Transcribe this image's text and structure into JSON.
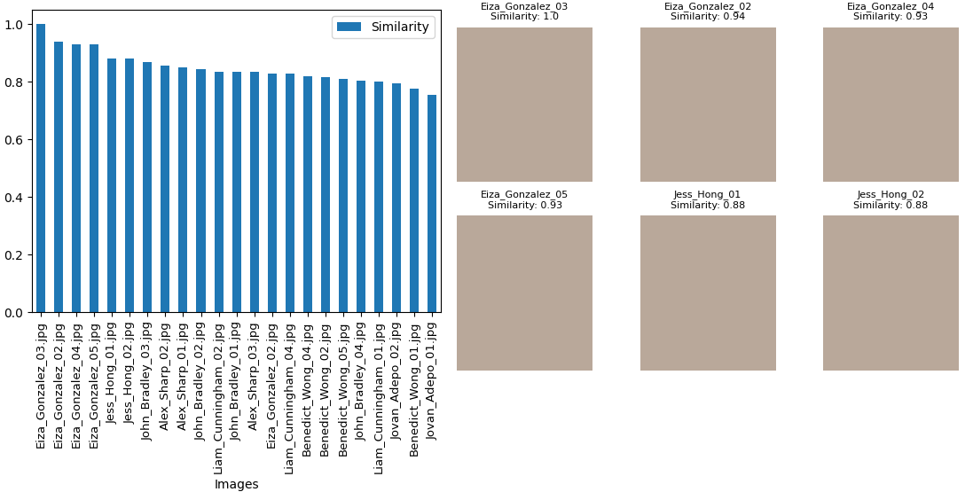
{
  "chart_data": {
    "type": "bar",
    "x_label": "Images",
    "categories": [
      "Eiza_Gonzalez_03.jpg",
      "Eiza_Gonzalez_02.jpg",
      "Eiza_Gonzalez_04.jpg",
      "Eiza_Gonzalez_05.jpg",
      "Jess_Hong_01.jpg",
      "Jess_Hong_02.jpg",
      "John_Bradley_03.jpg",
      "Alex_Sharp_02.jpg",
      "Alex_Sharp_01.jpg",
      "John_Bradley_02.jpg",
      "Liam_Cunningham_02.jpg",
      "John_Bradley_01.jpg",
      "Alex_Sharp_03.jpg",
      "Eiza_Gonzalez_02.jpg",
      "Liam_Cunningham_04.jpg",
      "Benedict_Wong_04.jpg",
      "Benedict_Wong_02.jpg",
      "Benedict_Wong_05.jpg",
      "John_Bradley_04.jpg",
      "Liam_Cunningham_01.jpg",
      "Jovan_Adepo_02.jpg",
      "Benedict_Wong_01.jpg",
      "Jovan_Adepo_01.jpg"
    ],
    "series": [
      {
        "name": "Similarity",
        "color": "#1f77b4",
        "values": [
          1.0,
          0.94,
          0.93,
          0.93,
          0.88,
          0.88,
          0.87,
          0.855,
          0.85,
          0.845,
          0.835,
          0.835,
          0.835,
          0.83,
          0.828,
          0.82,
          0.815,
          0.81,
          0.805,
          0.8,
          0.795,
          0.775,
          0.755
        ]
      }
    ],
    "ylim": [
      0,
      1.05
    ],
    "yticks": [
      0.0,
      0.2,
      0.4,
      0.6,
      0.8,
      1.0
    ],
    "legend": "upper right",
    "grid": false
  },
  "image_grid": [
    {
      "title": "Eiza_Gonzalez_03",
      "subtitle": "Similarity: 1.0"
    },
    {
      "title": "Eiza_Gonzalez_02",
      "subtitle": "Similarity: 0.94"
    },
    {
      "title": "Eiza_Gonzalez_04",
      "subtitle": "Similarity: 0.93"
    },
    {
      "title": "Eiza_Gonzalez_05",
      "subtitle": "Similarity: 0.93"
    },
    {
      "title": "Jess_Hong_01",
      "subtitle": "Similarity: 0.88"
    },
    {
      "title": "Jess_Hong_02",
      "subtitle": "Similarity: 0.88"
    }
  ]
}
